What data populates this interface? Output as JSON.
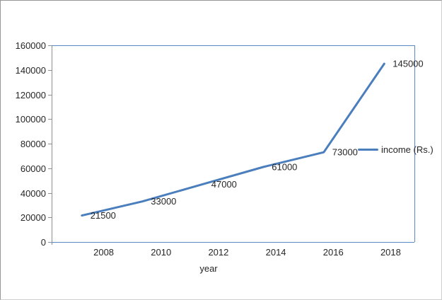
{
  "chart_data": {
    "type": "line",
    "title": "",
    "xlabel": "year",
    "ylabel": "",
    "categories": [
      "2008",
      "2010",
      "2012",
      "2014",
      "2016",
      "2018"
    ],
    "series": [
      {
        "name": "income (Rs.)",
        "values": [
          21500,
          33000,
          47000,
          61000,
          73000,
          145000
        ]
      }
    ],
    "data_labels": [
      "21500",
      "33000",
      "47000",
      "61000",
      "73000",
      "145000"
    ],
    "y_ticks": [
      0,
      20000,
      40000,
      60000,
      80000,
      100000,
      120000,
      140000,
      160000
    ],
    "ylim": [
      0,
      160000
    ],
    "grid": false,
    "legend_position": "right",
    "data_label_position": "right",
    "colors": {
      "series_line": "#4a7ebc",
      "plot_border": "#5a8ac2",
      "axis_line": "#8f8f8f",
      "text": "#262626"
    }
  }
}
